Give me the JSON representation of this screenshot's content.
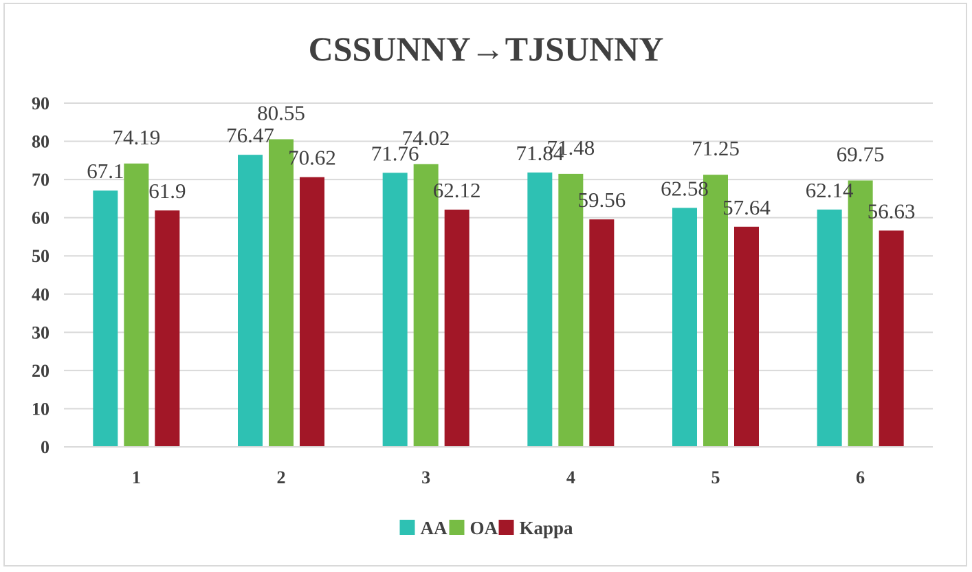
{
  "chart_data": {
    "type": "bar",
    "title": "CSSUNNY→TJSUNNY",
    "xlabel": "",
    "ylabel": "",
    "categories": [
      "1",
      "2",
      "3",
      "4",
      "5",
      "6"
    ],
    "ylim": [
      0,
      90
    ],
    "yticks": [
      "0",
      "10",
      "20",
      "30",
      "40",
      "50",
      "60",
      "70",
      "80",
      "90"
    ],
    "grid": true,
    "legend_position": "bottom",
    "series": [
      {
        "name": "AA",
        "color": "#2ec1b3",
        "values": [
          67.1,
          76.47,
          71.76,
          71.84,
          62.58,
          62.14
        ],
        "labels": [
          "67.1",
          "76.47",
          "71.76",
          "71.84",
          "62.58",
          "62.14"
        ]
      },
      {
        "name": "OA",
        "color": "#77bc44",
        "values": [
          74.19,
          80.55,
          74.02,
          71.48,
          71.25,
          69.75
        ],
        "labels": [
          "74.19",
          "80.55",
          "74.02",
          "71.48",
          "71.25",
          "69.75"
        ]
      },
      {
        "name": "Kappa",
        "color": "#a21727",
        "values": [
          61.9,
          70.62,
          62.12,
          59.56,
          57.64,
          56.63
        ],
        "labels": [
          "61.9",
          "70.62",
          "62.12",
          "59.56",
          "57.64",
          "56.63"
        ]
      }
    ]
  }
}
